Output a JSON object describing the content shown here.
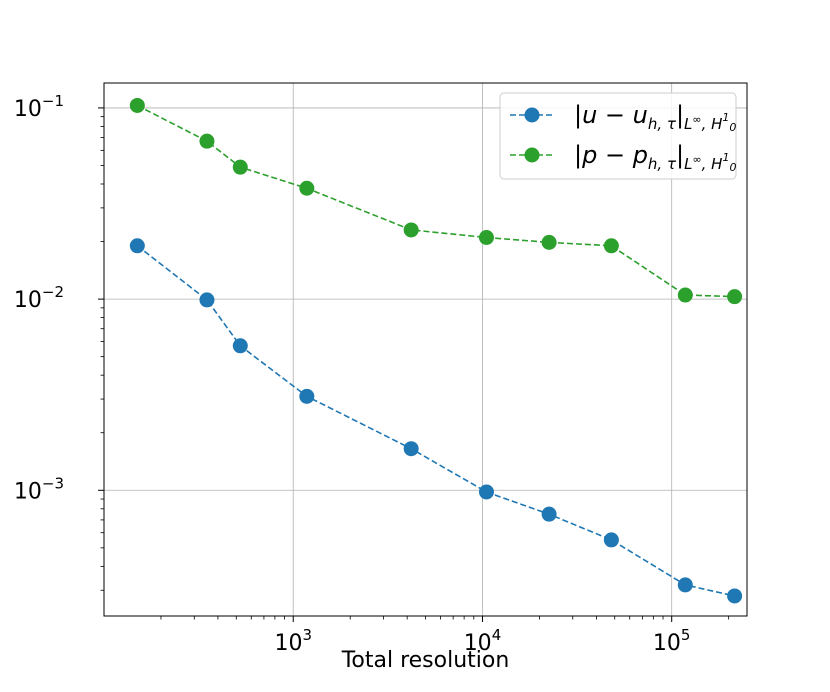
{
  "chart_data": {
    "type": "line",
    "xscale": "log",
    "yscale": "log",
    "xlim": [
      100,
      250000
    ],
    "ylim": [
      0.00022,
      0.135
    ],
    "xlabel": "Total resolution",
    "ylabel": "",
    "grid": true,
    "legend_position": "top-right",
    "x_ticks": [
      {
        "value": 1000,
        "base": "10",
        "exp": "3"
      },
      {
        "value": 10000,
        "base": "10",
        "exp": "4"
      },
      {
        "value": 100000,
        "base": "10",
        "exp": "5"
      }
    ],
    "y_ticks": [
      {
        "value": 0.1,
        "base": "10",
        "exp": "−1"
      },
      {
        "value": 0.01,
        "base": "10",
        "exp": "−2"
      },
      {
        "value": 0.001,
        "base": "10",
        "exp": "−3"
      }
    ],
    "x": [
      150,
      350,
      525,
      1180,
      4200,
      10500,
      22500,
      48000,
      118000,
      215000
    ],
    "series": [
      {
        "name": "|u − u_{h,τ}|_{L∞,H01}",
        "label_main": "|u − u",
        "label_sub": "h, τ",
        "label_close": "|",
        "label_norm": "L",
        "label_norm_sup": "∞",
        "label_norm_rest": ", H",
        "label_h_sup": "1",
        "label_h_sub": "0",
        "color": "#1f77b4",
        "values": [
          0.019,
          0.0099,
          0.0057,
          0.0031,
          0.00165,
          0.00098,
          0.00075,
          0.00055,
          0.00032,
          0.00028
        ]
      },
      {
        "name": "|p − p_{h,τ}|_{L∞,H01}",
        "label_main": "|p − p",
        "label_sub": "h, τ",
        "label_close": "|",
        "label_norm": "L",
        "label_norm_sup": "∞",
        "label_norm_rest": ", H",
        "label_h_sup": "1",
        "label_h_sub": "0",
        "color": "#2ca02c",
        "values": [
          0.103,
          0.067,
          0.049,
          0.038,
          0.023,
          0.021,
          0.0198,
          0.019,
          0.0105,
          0.0103
        ]
      }
    ]
  }
}
